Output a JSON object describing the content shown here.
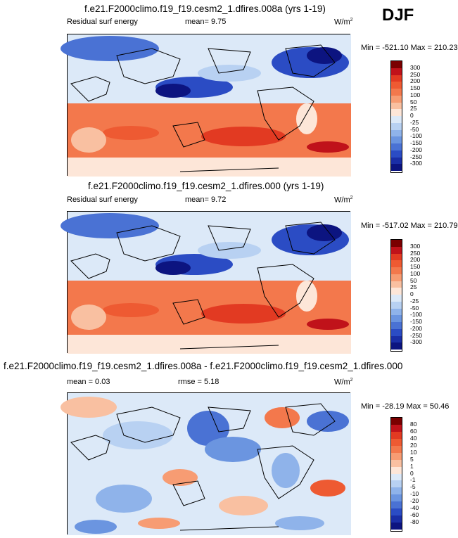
{
  "season": "DJF",
  "panels": [
    {
      "title": "f.e21.F2000climo.f19_f19.cesm2_1.dfires.008a (yrs 1-19)",
      "left_label": "Residual surf energy",
      "center_label": "mean=   9.75",
      "units": "W/m",
      "units_sup": "2",
      "minmax": "Min = -521.10 Max = 210.23",
      "colorbar_ticks": [
        "300",
        "250",
        "200",
        "150",
        "100",
        "50",
        "25",
        "0",
        "-25",
        "-50",
        "-100",
        "-150",
        "-200",
        "-250",
        "-300"
      ],
      "colorbar_colors": [
        "#7a0000",
        "#c0121a",
        "#e23a22",
        "#ee5a32",
        "#f3784c",
        "#f79c73",
        "#f9c0a1",
        "#fde6d8",
        "#dce9f8",
        "#b8d1f2",
        "#8fb3ea",
        "#6b95e0",
        "#4a72d4",
        "#2b4cc4",
        "#1a2ea6",
        "#0c1480"
      ]
    },
    {
      "title": "f.e21.F2000climo.f19_f19.cesm2_1.dfires.000 (yrs 1-19)",
      "left_label": "Residual surf energy",
      "center_label": "mean=   9.72",
      "units": "W/m",
      "units_sup": "2",
      "minmax": "Min = -517.02 Max = 210.79",
      "colorbar_ticks": [
        "300",
        "250",
        "200",
        "150",
        "100",
        "50",
        "25",
        "0",
        "-25",
        "-50",
        "-100",
        "-150",
        "-200",
        "-250",
        "-300"
      ],
      "colorbar_colors": [
        "#7a0000",
        "#c0121a",
        "#e23a22",
        "#ee5a32",
        "#f3784c",
        "#f79c73",
        "#f9c0a1",
        "#fde6d8",
        "#dce9f8",
        "#b8d1f2",
        "#8fb3ea",
        "#6b95e0",
        "#4a72d4",
        "#2b4cc4",
        "#1a2ea6",
        "#0c1480"
      ]
    },
    {
      "title": "f.e21.F2000climo.f19_f19.cesm2_1.dfires.008a - f.e21.F2000climo.f19_f19.cesm2_1.dfires.000",
      "left_label": "mean =   0.03",
      "center_label": "rmse =   5.18",
      "units": "W/m",
      "units_sup": "2",
      "minmax": "Min = -28.19 Max =  50.46",
      "colorbar_ticks": [
        "80",
        "60",
        "40",
        "20",
        "10",
        "5",
        "1",
        "0",
        "-1",
        "-5",
        "-10",
        "-20",
        "-40",
        "-60",
        "-80"
      ],
      "colorbar_colors": [
        "#7a0000",
        "#c0121a",
        "#e23a22",
        "#ee5a32",
        "#f3784c",
        "#f79c73",
        "#f9c0a1",
        "#fde6d8",
        "#dce9f8",
        "#b8d1f2",
        "#8fb3ea",
        "#6b95e0",
        "#4a72d4",
        "#2b4cc4",
        "#1a2ea6",
        "#0c1480"
      ]
    }
  ]
}
